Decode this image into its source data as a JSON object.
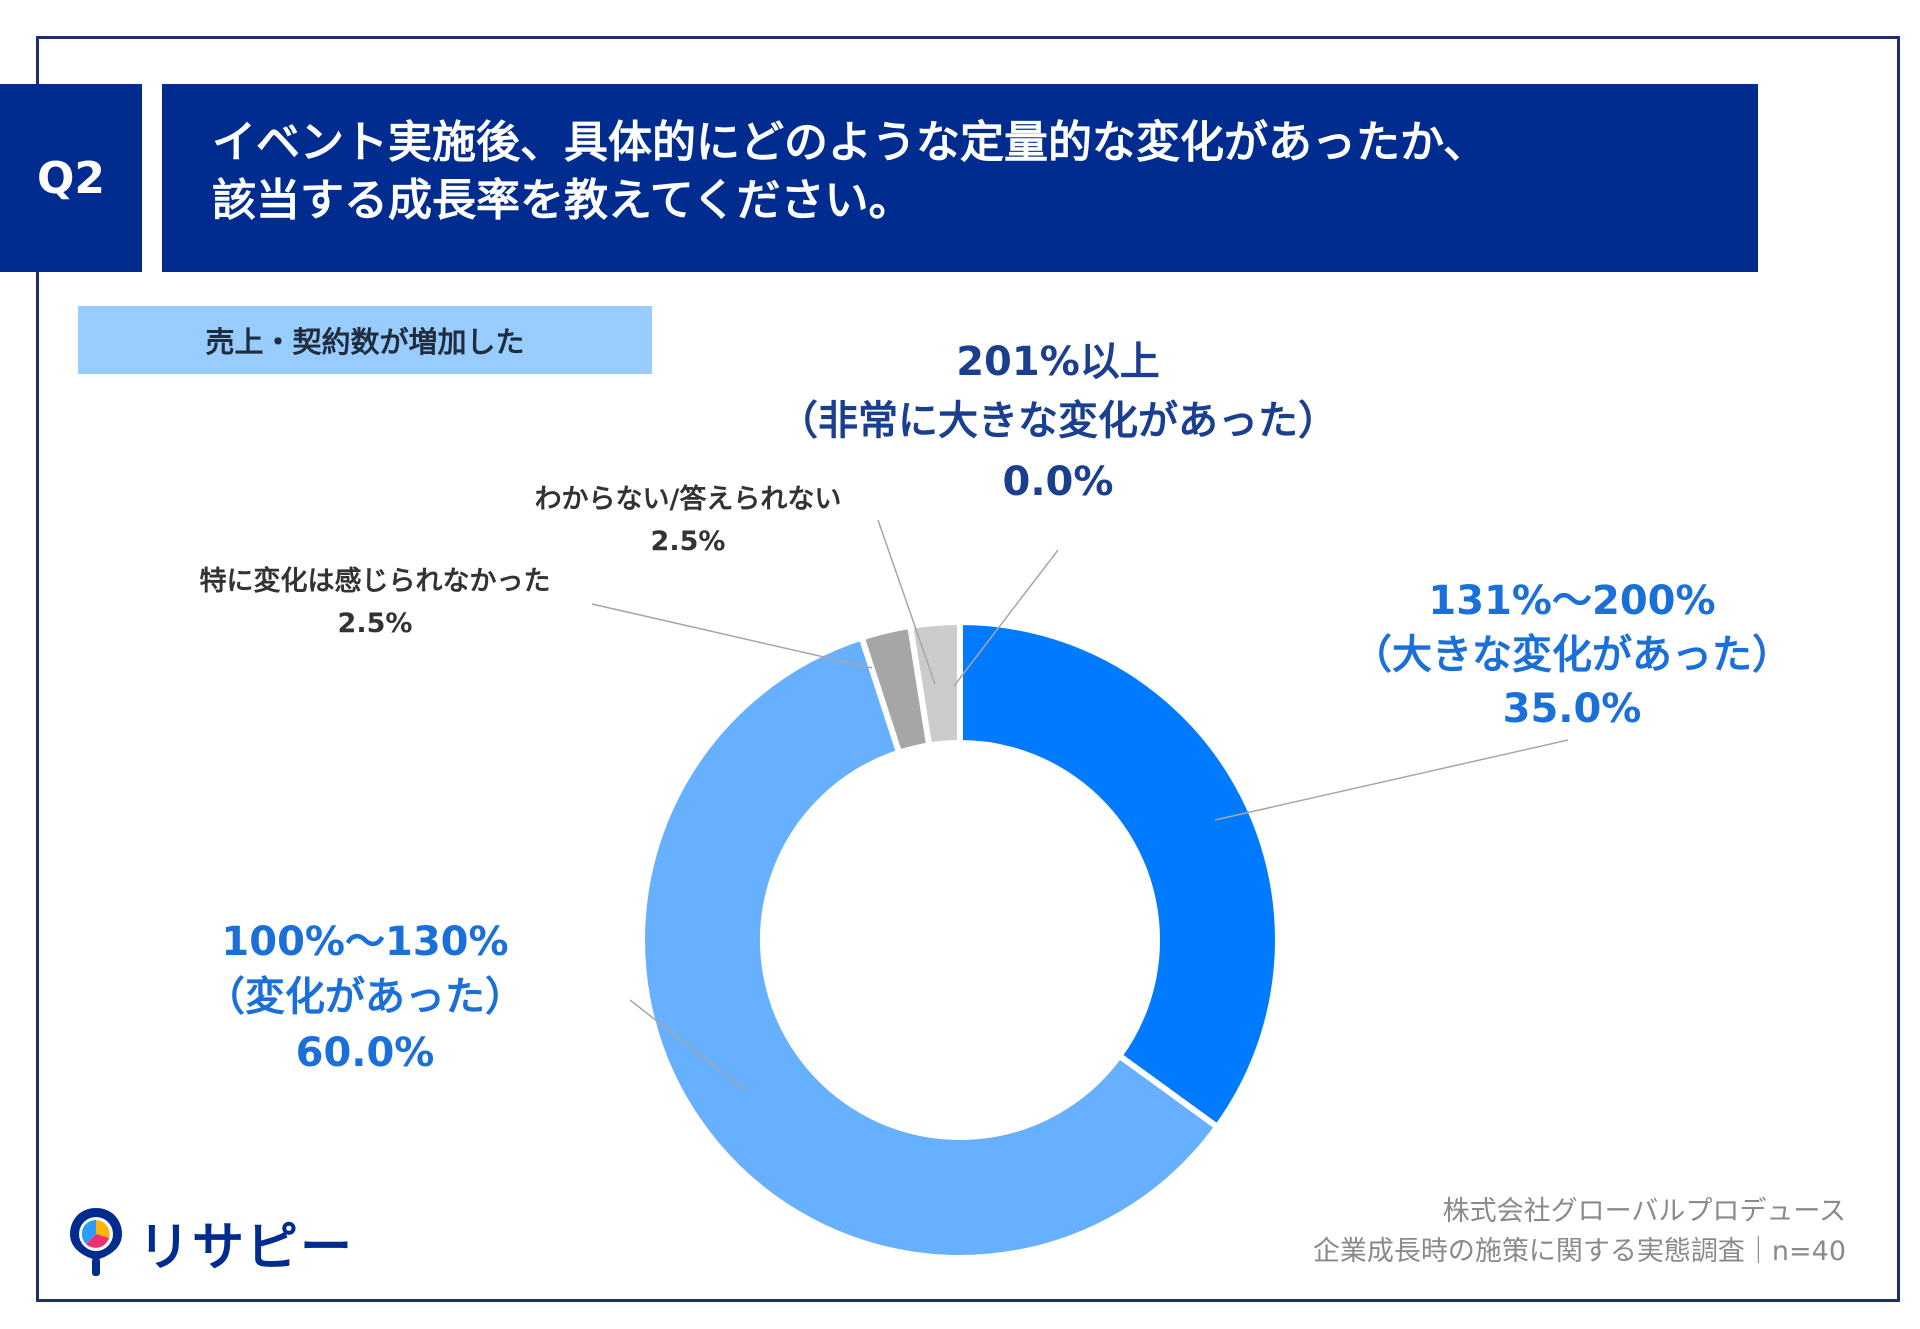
{
  "header": {
    "question_id": "Q2",
    "title_line1": "イベント実施後、具体的にどのような定量的な変化があったか、",
    "title_line2": "該当する成長率を教えてください。"
  },
  "category_tag": "売上・契約数が増加した",
  "colors": {
    "navy": "#012c8f",
    "tag_bg": "#99ccff",
    "series_131_200": "#007bff",
    "series_100_130": "#66b0ff",
    "series_none": "#a6a6a6",
    "series_unknown": "#cccccc",
    "label_blue": "#1a6fd8",
    "label_navy": "#1a3f8f"
  },
  "chart_data": {
    "type": "pie",
    "style": "donut",
    "title": "売上・契約数が増加した",
    "unit": "%",
    "start": "12 o'clock",
    "direction": "clockwise",
    "slices": [
      {
        "line1": "201%以上",
        "line2": "（非常に大きな変化があった）",
        "value": 0.0,
        "value_label": "0.0%"
      },
      {
        "line1": "131%～200%",
        "line2": "（大きな変化があった）",
        "value": 35.0,
        "value_label": "35.0%"
      },
      {
        "line1": "100%～130%",
        "line2": "（変化があった）",
        "value": 60.0,
        "value_label": "60.0%"
      },
      {
        "line1": "特に変化は感じられなかった",
        "line2": "",
        "value": 2.5,
        "value_label": "2.5%"
      },
      {
        "line1": "わからない/答えられない",
        "line2": "",
        "value": 2.5,
        "value_label": "2.5%"
      }
    ]
  },
  "footer": {
    "company": "株式会社グローバルプロデュース",
    "survey": "企業成長時の施策に関する実態調査｜n=40"
  },
  "logo": {
    "text": "リサピー",
    "icon": "map-pin-icon"
  }
}
